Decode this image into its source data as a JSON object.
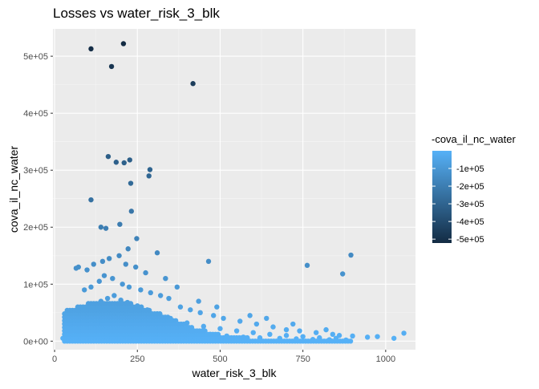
{
  "chart_data": {
    "type": "scatter",
    "title": "Losses vs water_risk_3_blk",
    "xlabel": "water_risk_3_blk",
    "ylabel": "cova_il_nc_water",
    "xlim": [
      -5,
      1090
    ],
    "ylim": [
      -15000,
      548000
    ],
    "x_ticks": [
      0,
      250,
      500,
      750,
      1000
    ],
    "x_tick_labels": [
      "0",
      "250",
      "500",
      "750",
      "1000"
    ],
    "y_ticks": [
      0,
      100000,
      200000,
      300000,
      400000,
      500000
    ],
    "y_tick_labels": [
      "0e+00",
      "1e+05",
      "2e+05",
      "3e+05",
      "4e+05",
      "5e+05"
    ],
    "grid": true,
    "color_scale": {
      "name": "-cova_il_nc_water",
      "low_color": "#132B43",
      "high_color": "#56B1F7",
      "limits": [
        -522000,
        0
      ],
      "breaks": [
        -100000,
        -200000,
        -300000,
        -400000,
        -500000
      ],
      "break_labels": [
        "-1e+05",
        "-2e+05",
        "-3e+05",
        "-4e+05",
        "-5e+05"
      ],
      "legend_position": "right"
    },
    "notable_points": [
      {
        "x": 110,
        "y": 513000
      },
      {
        "x": 208,
        "y": 522000
      },
      {
        "x": 172,
        "y": 482000
      },
      {
        "x": 418,
        "y": 452000
      },
      {
        "x": 162,
        "y": 324000
      },
      {
        "x": 227,
        "y": 318000
      },
      {
        "x": 186,
        "y": 314000
      },
      {
        "x": 210,
        "y": 313000
      },
      {
        "x": 288,
        "y": 301000
      },
      {
        "x": 285,
        "y": 290000
      },
      {
        "x": 230,
        "y": 277000
      },
      {
        "x": 110,
        "y": 248000
      },
      {
        "x": 232,
        "y": 228000
      },
      {
        "x": 140,
        "y": 200000
      },
      {
        "x": 197,
        "y": 205000
      },
      {
        "x": 155,
        "y": 198000
      },
      {
        "x": 248,
        "y": 180000
      },
      {
        "x": 310,
        "y": 155000
      },
      {
        "x": 222,
        "y": 162000
      },
      {
        "x": 895,
        "y": 151000
      },
      {
        "x": 465,
        "y": 140000
      },
      {
        "x": 763,
        "y": 133000
      },
      {
        "x": 870,
        "y": 118000
      },
      {
        "x": 1055,
        "y": 14000
      },
      {
        "x": 1025,
        "y": 5000
      },
      {
        "x": 975,
        "y": 8000
      },
      {
        "x": 945,
        "y": 7000
      },
      {
        "x": 900,
        "y": 9000
      }
    ],
    "cloud_points": [
      {
        "x": 60,
        "y": 30000
      },
      {
        "x": 80,
        "y": 45000
      },
      {
        "x": 95,
        "y": 55000
      },
      {
        "x": 120,
        "y": 60000
      },
      {
        "x": 140,
        "y": 70000
      },
      {
        "x": 160,
        "y": 75000
      },
      {
        "x": 180,
        "y": 80000
      },
      {
        "x": 200,
        "y": 72000
      },
      {
        "x": 220,
        "y": 68000
      },
      {
        "x": 250,
        "y": 62000
      },
      {
        "x": 280,
        "y": 55000
      },
      {
        "x": 310,
        "y": 48000
      },
      {
        "x": 350,
        "y": 40000
      },
      {
        "x": 400,
        "y": 32000
      },
      {
        "x": 450,
        "y": 26000
      },
      {
        "x": 500,
        "y": 22000
      },
      {
        "x": 550,
        "y": 18000
      },
      {
        "x": 600,
        "y": 15000
      },
      {
        "x": 650,
        "y": 12000
      },
      {
        "x": 700,
        "y": 10000
      },
      {
        "x": 750,
        "y": 8000
      },
      {
        "x": 800,
        "y": 6000
      },
      {
        "x": 850,
        "y": 5000
      },
      {
        "x": 50,
        "y": 10000
      },
      {
        "x": 70,
        "y": 20000
      },
      {
        "x": 100,
        "y": 35000
      },
      {
        "x": 130,
        "y": 40000
      },
      {
        "x": 170,
        "y": 50000
      },
      {
        "x": 190,
        "y": 60000
      },
      {
        "x": 210,
        "y": 45000
      },
      {
        "x": 240,
        "y": 40000
      },
      {
        "x": 270,
        "y": 35000
      },
      {
        "x": 300,
        "y": 30000
      },
      {
        "x": 330,
        "y": 25000
      },
      {
        "x": 360,
        "y": 20000
      },
      {
        "x": 390,
        "y": 18000
      },
      {
        "x": 420,
        "y": 15000
      },
      {
        "x": 470,
        "y": 12000
      },
      {
        "x": 520,
        "y": 9000
      },
      {
        "x": 570,
        "y": 7000
      },
      {
        "x": 620,
        "y": 6000
      },
      {
        "x": 680,
        "y": 5000
      },
      {
        "x": 730,
        "y": 4000
      },
      {
        "x": 780,
        "y": 3000
      },
      {
        "x": 830,
        "y": 2500
      },
      {
        "x": 880,
        "y": 2000
      },
      {
        "x": 60,
        "y": 5000
      },
      {
        "x": 40,
        "y": 3000
      },
      {
        "x": 30,
        "y": 2000
      },
      {
        "x": 25,
        "y": 5000
      },
      {
        "x": 90,
        "y": 90000
      },
      {
        "x": 110,
        "y": 95000
      },
      {
        "x": 135,
        "y": 105000
      },
      {
        "x": 150,
        "y": 115000
      },
      {
        "x": 175,
        "y": 110000
      },
      {
        "x": 205,
        "y": 100000
      },
      {
        "x": 225,
        "y": 95000
      },
      {
        "x": 260,
        "y": 90000
      },
      {
        "x": 290,
        "y": 85000
      },
      {
        "x": 320,
        "y": 80000
      },
      {
        "x": 345,
        "y": 75000
      },
      {
        "x": 380,
        "y": 60000
      },
      {
        "x": 410,
        "y": 55000
      },
      {
        "x": 440,
        "y": 50000
      },
      {
        "x": 480,
        "y": 45000
      },
      {
        "x": 510,
        "y": 40000
      },
      {
        "x": 560,
        "y": 35000
      },
      {
        "x": 610,
        "y": 30000
      },
      {
        "x": 660,
        "y": 25000
      },
      {
        "x": 700,
        "y": 20000
      },
      {
        "x": 740,
        "y": 18000
      },
      {
        "x": 790,
        "y": 15000
      },
      {
        "x": 840,
        "y": 12000
      },
      {
        "x": 65,
        "y": 128000
      },
      {
        "x": 72,
        "y": 130000
      },
      {
        "x": 98,
        "y": 125000
      },
      {
        "x": 118,
        "y": 135000
      },
      {
        "x": 145,
        "y": 140000
      },
      {
        "x": 165,
        "y": 145000
      },
      {
        "x": 195,
        "y": 150000
      },
      {
        "x": 215,
        "y": 135000
      },
      {
        "x": 245,
        "y": 130000
      },
      {
        "x": 275,
        "y": 120000
      },
      {
        "x": 335,
        "y": 110000
      },
      {
        "x": 370,
        "y": 95000
      },
      {
        "x": 435,
        "y": 70000
      },
      {
        "x": 490,
        "y": 60000
      },
      {
        "x": 590,
        "y": 45000
      },
      {
        "x": 640,
        "y": 40000
      },
      {
        "x": 720,
        "y": 30000
      },
      {
        "x": 820,
        "y": 20000
      },
      {
        "x": 860,
        "y": 10000
      }
    ]
  }
}
